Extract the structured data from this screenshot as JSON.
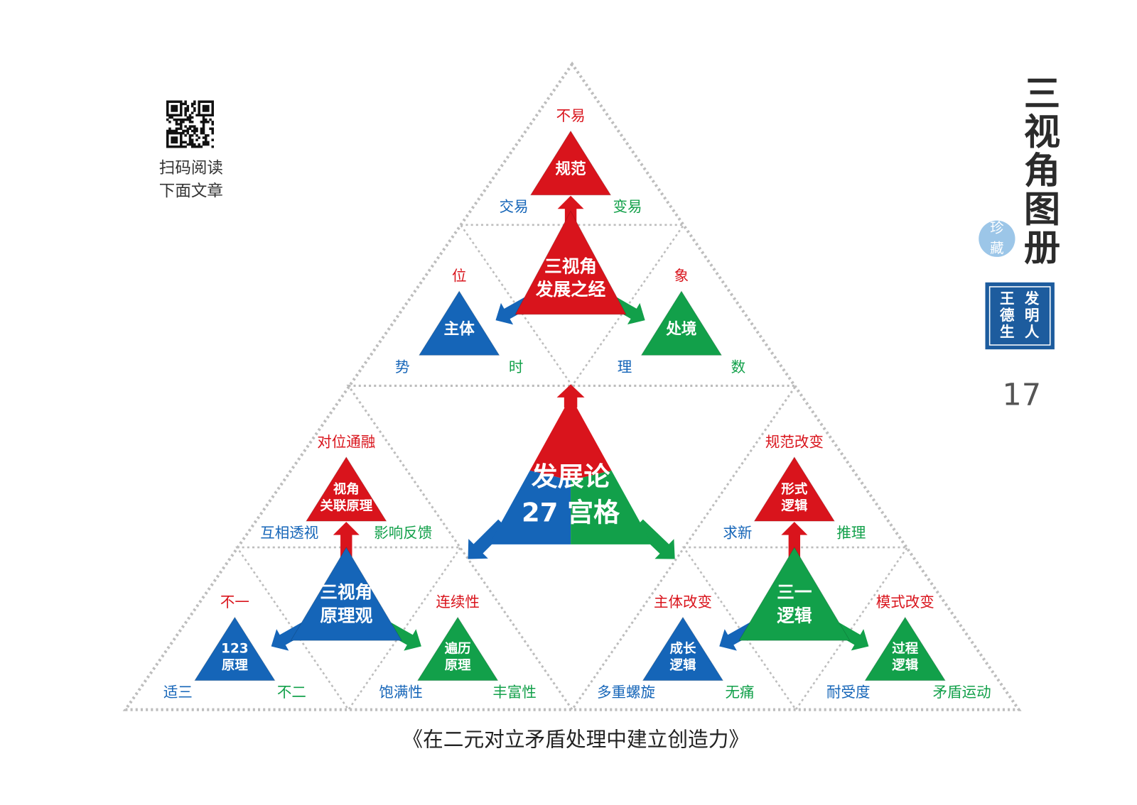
{
  "qr": {
    "caption": [
      "扫码阅读",
      "下面文章"
    ]
  },
  "side": {
    "title": [
      "三",
      "视",
      "角",
      "图",
      "册"
    ],
    "badge": [
      "珍",
      "藏"
    ],
    "stamp": {
      "name": [
        "王",
        "德",
        "生"
      ],
      "role": [
        "发",
        "明",
        "人"
      ]
    },
    "page_number": "17"
  },
  "diagram": {
    "center": {
      "lines": [
        "发展论",
        "27 宫格"
      ],
      "colors": [
        "#d9141c",
        "#1565b8",
        "#12a04a"
      ]
    },
    "groups": [
      {
        "center": {
          "lines": [
            "三视角",
            "发展之经"
          ],
          "color": "#d9141c"
        },
        "nodes": [
          {
            "lines": [
              "规范"
            ],
            "top": "不易",
            "left": "交易",
            "right": "变易",
            "color": "#d9141c"
          },
          {
            "lines": [
              "主体"
            ],
            "top": "位",
            "left": "势",
            "right": "时",
            "color": "#1565b8"
          },
          {
            "lines": [
              "处境"
            ],
            "top": "象",
            "left": "理",
            "right": "数",
            "color": "#12a04a"
          }
        ]
      },
      {
        "center": {
          "lines": [
            "三视角",
            "原理观"
          ],
          "color": "#1565b8"
        },
        "nodes": [
          {
            "lines": [
              "视角",
              "关联原理"
            ],
            "top": "对位通融",
            "left": "互相透视",
            "right": "影响反馈",
            "color": "#d9141c"
          },
          {
            "lines": [
              "123",
              "原理"
            ],
            "top": "不一",
            "left": "适三",
            "right": "不二",
            "color": "#1565b8"
          },
          {
            "lines": [
              "遍历",
              "原理"
            ],
            "top": "连续性",
            "left": "饱满性",
            "right": "丰富性",
            "color": "#12a04a"
          }
        ]
      },
      {
        "center": {
          "lines": [
            "三一",
            "逻辑"
          ],
          "color": "#12a04a"
        },
        "nodes": [
          {
            "lines": [
              "形式",
              "逻辑"
            ],
            "top": "规范改变",
            "left": "求新",
            "right": "推理",
            "color": "#d9141c"
          },
          {
            "lines": [
              "成长",
              "逻辑"
            ],
            "top": "主体改变",
            "left": "多重螺旋",
            "right": "无痛",
            "color": "#1565b8"
          },
          {
            "lines": [
              "过程",
              "逻辑"
            ],
            "top": "模式改变",
            "left": "耐受度",
            "right": "矛盾运动",
            "color": "#12a04a"
          }
        ]
      }
    ]
  },
  "caption": "《在二元对立矛盾处理中建立创造力》"
}
